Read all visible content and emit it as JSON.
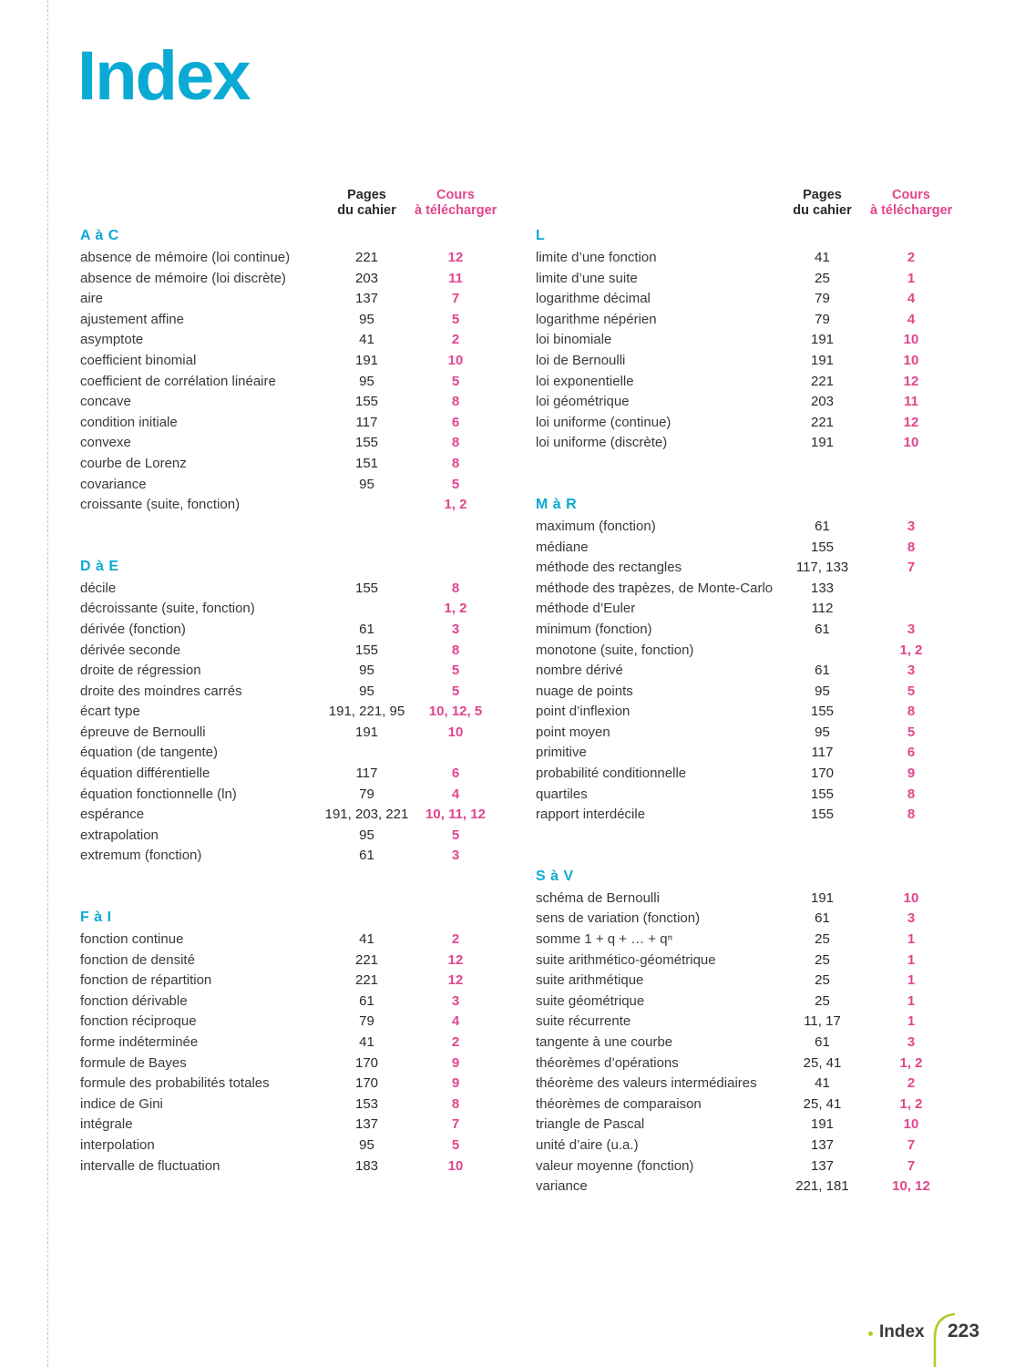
{
  "title": "Index",
  "column_header": {
    "pages": [
      "Pages",
      "du cahier"
    ],
    "cours": [
      "Cours",
      "à télécharger"
    ]
  },
  "columns": [
    {
      "sections": [
        {
          "letter": "A à C",
          "entries": [
            {
              "term": "absence de mémoire (loi continue)",
              "pages": "221",
              "cours": "12"
            },
            {
              "term": "absence de mémoire (loi discrète)",
              "pages": "203",
              "cours": "11"
            },
            {
              "term": "aire",
              "pages": "137",
              "cours": "7"
            },
            {
              "term": "ajustement affine",
              "pages": "95",
              "cours": "5"
            },
            {
              "term": "asymptote",
              "pages": "41",
              "cours": "2"
            },
            {
              "term": "coefficient binomial",
              "pages": "191",
              "cours": "10"
            },
            {
              "term": "coefficient de corrélation linéaire",
              "pages": "95",
              "cours": "5"
            },
            {
              "term": "concave",
              "pages": "155",
              "cours": "8"
            },
            {
              "term": "condition initiale",
              "pages": "117",
              "cours": "6"
            },
            {
              "term": "convexe",
              "pages": "155",
              "cours": "8"
            },
            {
              "term": "courbe de Lorenz",
              "pages": "151",
              "cours": "8"
            },
            {
              "term": "covariance",
              "pages": "95",
              "cours": "5"
            },
            {
              "term": "croissante (suite, fonction)",
              "pages": "",
              "cours": "1, 2"
            }
          ]
        },
        {
          "letter": "D à E",
          "entries": [
            {
              "term": "décile",
              "pages": "155",
              "cours": "8"
            },
            {
              "term": "décroissante (suite, fonction)",
              "pages": "",
              "cours": "1, 2"
            },
            {
              "term": "dérivée (fonction)",
              "pages": "61",
              "cours": "3"
            },
            {
              "term": "dérivée seconde",
              "pages": "155",
              "cours": "8"
            },
            {
              "term": "droite de régression",
              "pages": "95",
              "cours": "5"
            },
            {
              "term": "droite des moindres carrés",
              "pages": "95",
              "cours": "5"
            },
            {
              "term": "écart type",
              "pages": "191, 221, 95",
              "cours": "10, 12, 5"
            },
            {
              "term": "épreuve de Bernoulli",
              "pages": "191",
              "cours": "10"
            },
            {
              "term": "équation (de tangente)",
              "pages": "",
              "cours": ""
            },
            {
              "term": "équation différentielle",
              "pages": "117",
              "cours": "6"
            },
            {
              "term": "équation fonctionnelle (ln)",
              "pages": "79",
              "cours": "4"
            },
            {
              "term": "espérance",
              "pages": "191, 203, 221",
              "cours": "10, 11, 12"
            },
            {
              "term": "extrapolation",
              "pages": "95",
              "cours": "5"
            },
            {
              "term": "extremum (fonction)",
              "pages": "61",
              "cours": "3"
            }
          ]
        },
        {
          "letter": "F à I",
          "entries": [
            {
              "term": "fonction continue",
              "pages": "41",
              "cours": "2"
            },
            {
              "term": "fonction de densité",
              "pages": "221",
              "cours": "12"
            },
            {
              "term": "fonction de répartition",
              "pages": "221",
              "cours": "12"
            },
            {
              "term": "fonction dérivable",
              "pages": "61",
              "cours": "3"
            },
            {
              "term": "fonction réciproque",
              "pages": "79",
              "cours": "4"
            },
            {
              "term": "forme indéterminée",
              "pages": "41",
              "cours": "2"
            },
            {
              "term": "formule de Bayes",
              "pages": "170",
              "cours": "9"
            },
            {
              "term": "formule des probabilités totales",
              "pages": "170",
              "cours": "9"
            },
            {
              "term": "indice de Gini",
              "pages": "153",
              "cours": "8"
            },
            {
              "term": "intégrale",
              "pages": "137",
              "cours": "7"
            },
            {
              "term": "interpolation",
              "pages": "95",
              "cours": "5"
            },
            {
              "term": "intervalle de fluctuation",
              "pages": "183",
              "cours": "10"
            }
          ]
        }
      ]
    },
    {
      "sections": [
        {
          "letter": "L",
          "entries": [
            {
              "term": "limite d’une fonction",
              "pages": "41",
              "cours": "2"
            },
            {
              "term": "limite d’une suite",
              "pages": "25",
              "cours": "1"
            },
            {
              "term": "logarithme décimal",
              "pages": "79",
              "cours": "4"
            },
            {
              "term": "logarithme népérien",
              "pages": "79",
              "cours": "4"
            },
            {
              "term": "loi binomiale",
              "pages": "191",
              "cours": "10"
            },
            {
              "term": "loi de Bernoulli",
              "pages": "191",
              "cours": "10"
            },
            {
              "term": "loi exponentielle",
              "pages": "221",
              "cours": "12"
            },
            {
              "term": "loi géométrique",
              "pages": "203",
              "cours": "11"
            },
            {
              "term": "loi uniforme (continue)",
              "pages": "221",
              "cours": "12"
            },
            {
              "term": "loi uniforme (discrète)",
              "pages": "191",
              "cours": "10"
            }
          ]
        },
        {
          "letter": "M à R",
          "entries": [
            {
              "term": "maximum (fonction)",
              "pages": "61",
              "cours": "3"
            },
            {
              "term": "médiane",
              "pages": "155",
              "cours": "8"
            },
            {
              "term": "méthode des rectangles",
              "pages": "117, 133",
              "cours": "7"
            },
            {
              "term": "méthode des trapèzes, de Monte-Carlo",
              "pages": "133",
              "cours": ""
            },
            {
              "term": "méthode d’Euler",
              "pages": "112",
              "cours": ""
            },
            {
              "term": "minimum (fonction)",
              "pages": "61",
              "cours": "3"
            },
            {
              "term": "monotone (suite, fonction)",
              "pages": "",
              "cours": "1, 2"
            },
            {
              "term": "nombre dérivé",
              "pages": "61",
              "cours": "3"
            },
            {
              "term": "nuage de points",
              "pages": "95",
              "cours": "5"
            },
            {
              "term": "point d’inflexion",
              "pages": "155",
              "cours": "8"
            },
            {
              "term": "point moyen",
              "pages": "95",
              "cours": "5"
            },
            {
              "term": "primitive",
              "pages": "117",
              "cours": "6"
            },
            {
              "term": "probabilité conditionnelle",
              "pages": "170",
              "cours": "9"
            },
            {
              "term": "quartiles",
              "pages": "155",
              "cours": "8"
            },
            {
              "term": "rapport interdécile",
              "pages": "155",
              "cours": "8"
            }
          ]
        },
        {
          "letter": "S à V",
          "entries": [
            {
              "term": "schéma de Bernoulli",
              "pages": "191",
              "cours": "10"
            },
            {
              "term": "sens de variation (fonction)",
              "pages": "61",
              "cours": "3"
            },
            {
              "term": "somme 1 + q + … + qⁿ",
              "pages": "25",
              "cours": "1"
            },
            {
              "term": "suite arithmético-géométrique",
              "pages": "25",
              "cours": "1"
            },
            {
              "term": "suite arithmétique",
              "pages": "25",
              "cours": "1"
            },
            {
              "term": "suite géométrique",
              "pages": "25",
              "cours": "1"
            },
            {
              "term": "suite récurrente",
              "pages": "11, 17",
              "cours": "1"
            },
            {
              "term": "tangente à une courbe",
              "pages": "61",
              "cours": "3"
            },
            {
              "term": "théorèmes d’opérations",
              "pages": "25, 41",
              "cours": "1, 2"
            },
            {
              "term": "théorème des valeurs intermédiaires",
              "pages": "41",
              "cours": "2"
            },
            {
              "term": "théorèmes de comparaison",
              "pages": "25, 41",
              "cours": "1, 2"
            },
            {
              "term": "triangle de Pascal",
              "pages": "191",
              "cours": "10"
            },
            {
              "term": "unité d’aire (u.a.)",
              "pages": "137",
              "cours": "7"
            },
            {
              "term": "valeur moyenne (fonction)",
              "pages": "137",
              "cours": "7"
            },
            {
              "term": "variance",
              "pages": "221, 181",
              "cours": "10, 12"
            }
          ]
        }
      ]
    }
  ],
  "footer": {
    "label": "Index",
    "page_number": "223"
  },
  "colors": {
    "accent_cyan": "#0aaad5",
    "accent_pink": "#e2458d",
    "footer_green": "#b3c926",
    "text": "#3a3a39"
  }
}
